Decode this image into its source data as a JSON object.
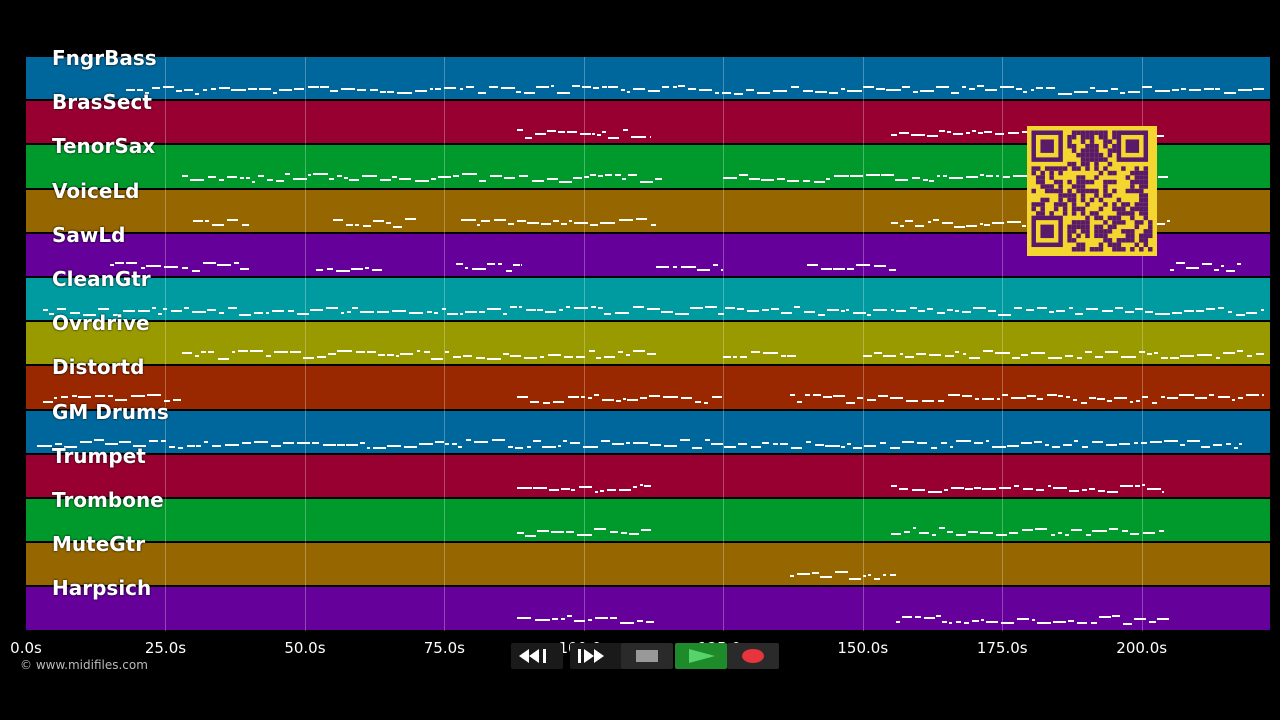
{
  "app": {
    "copyright": "© www.midifiles.com"
  },
  "timeline": {
    "start_seconds": 0,
    "end_seconds": 223,
    "ticks": [
      {
        "seconds": 0,
        "label": "0.0s"
      },
      {
        "seconds": 25,
        "label": "25.0s"
      },
      {
        "seconds": 50,
        "label": "50.0s"
      },
      {
        "seconds": 75,
        "label": "75.0s"
      },
      {
        "seconds": 100,
        "label": "100.0s"
      },
      {
        "seconds": 125,
        "label": "125.0s"
      },
      {
        "seconds": 150,
        "label": "150.0s"
      },
      {
        "seconds": 175,
        "label": "175.0s"
      },
      {
        "seconds": 200,
        "label": "200.0s"
      }
    ]
  },
  "tracks": [
    {
      "name": "FngrBass",
      "color": "#00679c",
      "regions": [
        [
          18,
          222
        ]
      ]
    },
    {
      "name": "BrasSect",
      "color": "#980031",
      "regions": [
        [
          88,
          112
        ],
        [
          155,
          204
        ]
      ]
    },
    {
      "name": "TenorSax",
      "color": "#009a2c",
      "regions": [
        [
          28,
          114
        ],
        [
          125,
          205
        ]
      ]
    },
    {
      "name": "VoiceLd",
      "color": "#966600",
      "regions": [
        [
          30,
          40
        ],
        [
          55,
          70
        ],
        [
          78,
          113
        ],
        [
          155,
          205
        ]
      ]
    },
    {
      "name": "SawLd",
      "color": "#65009a",
      "regions": [
        [
          15,
          40
        ],
        [
          52,
          64
        ],
        [
          77,
          89
        ],
        [
          113,
          125
        ],
        [
          140,
          156
        ],
        [
          205,
          218
        ]
      ]
    },
    {
      "name": "CleanGtr",
      "color": "#009ba0",
      "regions": [
        [
          3,
          222
        ]
      ]
    },
    {
      "name": "Ovrdrive",
      "color": "#999900",
      "regions": [
        [
          28,
          113
        ],
        [
          125,
          138
        ],
        [
          150,
          222
        ]
      ]
    },
    {
      "name": "Distortd",
      "color": "#992800",
      "regions": [
        [
          3,
          28
        ],
        [
          88,
          125
        ],
        [
          137,
          222
        ]
      ]
    },
    {
      "name": "GM Drums",
      "color": "#00679c",
      "regions": [
        [
          2,
          218
        ]
      ]
    },
    {
      "name": "Trumpet",
      "color": "#980031",
      "regions": [
        [
          88,
          112
        ],
        [
          155,
          204
        ]
      ]
    },
    {
      "name": "Trombone",
      "color": "#009a2c",
      "regions": [
        [
          88,
          112
        ],
        [
          155,
          204
        ]
      ]
    },
    {
      "name": "MuteGtr",
      "color": "#966600",
      "regions": [
        [
          137,
          156
        ]
      ]
    },
    {
      "name": "Harpsich",
      "color": "#65009a",
      "regions": [
        [
          88,
          113
        ],
        [
          156,
          205
        ]
      ]
    }
  ],
  "transport": {
    "rewind_icon": "rewind-icon",
    "fast_forward_icon": "fast-forward-icon",
    "stop_icon": "stop-icon",
    "play_icon": "play-icon",
    "record_icon": "record-icon"
  }
}
